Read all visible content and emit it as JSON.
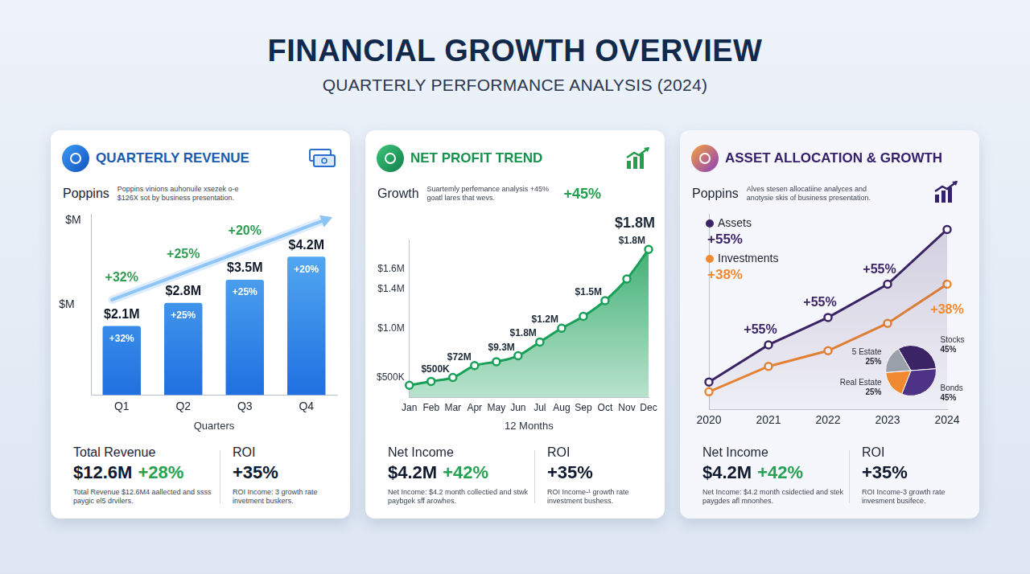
{
  "title": "FINANCIAL GROWTH OVERVIEW",
  "subtitle": "QUARTERLY PERFORMANCE ANALYSIS (2024)",
  "chart_data": [
    {
      "type": "bar",
      "title": "QUARTERLY REVENUE",
      "subtitle": "Poppins",
      "description": "Poppins vinions auhonuile xsezek o-e $126X sot by business presentation.",
      "categories": [
        "Q1",
        "Q2",
        "Q3",
        "Q4"
      ],
      "values": [
        2.1,
        2.8,
        3.5,
        4.2
      ],
      "value_labels": [
        "$2.1M",
        "$2.8M",
        "$3.5M",
        "$4.2M"
      ],
      "data_labels": true,
      "growth_labels": [
        "+32%",
        "+25%",
        "+25%",
        "+20%"
      ],
      "annotations": [
        {
          "x": "Q1",
          "text": "+32%"
        },
        {
          "x": "Q2",
          "text": "+25%"
        },
        {
          "x": "Q3",
          "text": "+20%"
        }
      ],
      "ylabel": "$M",
      "yunit": "$M",
      "xlabel": "Quarters",
      "ylim": [
        0,
        5.5
      ],
      "tick_labels": "x",
      "grid": false,
      "color": "#1f6fe0",
      "stats": [
        {
          "label": "Total Revenue",
          "value": "$12.6M",
          "change": "+28%",
          "note": "Total Revenue $12.6M4 aallected and ssss paygic el5 drvilers."
        },
        {
          "label": "ROI",
          "value": "+35%",
          "note": "ROI Income: 3 growth rate invetment buskers."
        }
      ]
    },
    {
      "type": "line",
      "title": "NET PROFIT TREND",
      "subtitle": "Growth",
      "description": "Suartemly perfemance analysis +45% goatl lares that wevs.",
      "headline": "+45%",
      "categories": [
        "Jan",
        "Feb",
        "Mar",
        "Apr",
        "May",
        "Jun",
        "Jul",
        "Aug",
        "Sep",
        "Oct",
        "Nov",
        "Dec"
      ],
      "values": [
        0.42,
        0.46,
        0.5,
        0.62,
        0.66,
        0.72,
        0.86,
        1.0,
        1.12,
        1.28,
        1.5,
        1.8
      ],
      "annotations": [
        {
          "x": "Mar",
          "text": "$500K"
        },
        {
          "x": "Apr",
          "text": "$72M"
        },
        {
          "x": "Jun",
          "text": "$9.3M"
        },
        {
          "x": "Jul",
          "text": "$1.8M"
        },
        {
          "x": "Aug",
          "text": "$1.2M"
        },
        {
          "x": "Oct",
          "text": "$1.5M"
        },
        {
          "x": "Dec",
          "text": "$1.8M"
        }
      ],
      "peak_label": "$1.8M",
      "xlabel": "12 Months",
      "ylim": [
        0.3,
        1.9
      ],
      "yticks": [
        {
          "value": 0.5,
          "label": "$500K"
        },
        {
          "value": 1.0,
          "label": "$1.0M"
        },
        {
          "value": 1.4,
          "label": "$1.4M"
        },
        {
          "value": 1.6,
          "label": "$1.6M"
        }
      ],
      "grid": false,
      "color": "#18a058",
      "marker": "circle",
      "stats": [
        {
          "label": "Net Income",
          "value": "$4.2M",
          "change": "+42%",
          "note": "Net Income: $4.2 month collectied and stwk paybgek sff arowhes."
        },
        {
          "label": "ROI",
          "value": "+35%",
          "note": "ROI Income-¹ growth rate investment bushess."
        }
      ]
    },
    {
      "type": "line",
      "title": "ASSET ALLOCATION & GROWTH",
      "subtitle": "Poppins",
      "description": "Alves stesen allocatiine analyces and anotysie skis of business presentation.",
      "categories": [
        "2020",
        "2021",
        "2022",
        "2023",
        "2024"
      ],
      "series": [
        {
          "name": "Assets",
          "growth": "+55%",
          "color": "#3b2466",
          "values": [
            14,
            33,
            47,
            64,
            92
          ]
        },
        {
          "name": "Investments",
          "growth": "+38%",
          "color": "#f0892f",
          "values": [
            9,
            22,
            30,
            44,
            64
          ]
        }
      ],
      "annotations": [
        {
          "x": "2021",
          "series": "Assets",
          "text": "+55%"
        },
        {
          "x": "2022",
          "series": "Assets",
          "text": "+55%"
        },
        {
          "x": "2023",
          "series": "Assets",
          "text": "+55%"
        },
        {
          "x": "2024",
          "series": "Investments",
          "text": "+38%"
        }
      ],
      "ylim": [
        0,
        100
      ],
      "tick_labels": "x",
      "legend": "top-left",
      "grid": false,
      "marker": "circle",
      "stats": [
        {
          "label": "Net Income",
          "value": "$4.2M",
          "change": "+42%",
          "note": "Net Income: $4.2 month csidectied and stek paygdes afl mnonhes."
        },
        {
          "label": "ROI",
          "value": "+35%",
          "note": "ROI Income-3 growth rate invesment busifece."
        }
      ]
    },
    {
      "type": "pie",
      "categories": [
        "Stocks",
        "Bonds",
        "Real Estate",
        "5 Estate"
      ],
      "values": [
        45,
        45,
        25,
        25
      ],
      "value_labels": [
        "45%",
        "45%",
        "25%",
        "25%"
      ],
      "data_labels": true,
      "colors": [
        "#3b2466",
        "#4e3285",
        "#f0892f",
        "#9aa0aa"
      ]
    }
  ]
}
